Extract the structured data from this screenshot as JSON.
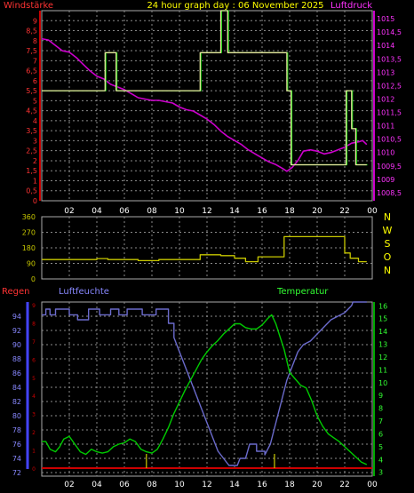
{
  "header": {
    "left": "Windstärke",
    "center": "24 hour graph day : 06 November 2025",
    "right": "Luftdruck"
  },
  "bottom_header": {
    "left": "Regen",
    "middle": "Luftfeuchte",
    "right": "Temperatur"
  },
  "colors": {
    "background": "#000000",
    "grid": "#8a8a8a",
    "wind": "#e8e8a0",
    "wind_gust": "#00cc00",
    "pressure": "#cc00cc",
    "direction": "#c8c800",
    "humidity": "#6b6bcc",
    "temperature": "#00cc00",
    "rain": "#cc0000",
    "rain_axis": "#4444ff",
    "left_labels": "#ff3333",
    "right_labels_pressure": "#ff33ff",
    "humidity_labels": "#8888ff",
    "temperature_labels": "#33ff33",
    "header_text": "#ffff00",
    "header_left": "#ff3333",
    "header_right": "#ff33ff"
  },
  "chart_data": [
    {
      "type": "line",
      "name": "wind-pressure",
      "x_ticks": [
        "02",
        "04",
        "06",
        "08",
        "10",
        "12",
        "14",
        "16",
        "18",
        "20",
        "22",
        "00"
      ],
      "xlim": [
        0,
        24
      ],
      "y_left_ticks": [
        "0",
        "0,5",
        "1",
        "1,5",
        "2",
        "2,5",
        "3",
        "3,5",
        "4",
        "4,5",
        "5",
        "5,5",
        "6",
        "6,5",
        "7",
        "7,5",
        "8",
        "8,5",
        "9"
      ],
      "ylim_left": [
        0,
        9.5
      ],
      "y_right_ticks": [
        "1008,5",
        "1009",
        "1009,5",
        "1010",
        "1010,5",
        "1011",
        "1011,5",
        "1012",
        "1012,5",
        "1013",
        "1013,5",
        "1014",
        "1014,5",
        "1015"
      ],
      "ylim_right": [
        1008.2,
        1015.3
      ],
      "series": [
        {
          "key": "wind",
          "points": [
            [
              0,
              5.5
            ],
            [
              4.6,
              5.5
            ],
            [
              4.6,
              7.4
            ],
            [
              5.4,
              7.4
            ],
            [
              5.4,
              5.5
            ],
            [
              11.5,
              5.5
            ],
            [
              11.5,
              7.4
            ],
            [
              13,
              7.4
            ],
            [
              13,
              9.5
            ],
            [
              13.5,
              9.5
            ],
            [
              13.5,
              7.4
            ],
            [
              17.8,
              7.4
            ],
            [
              17.8,
              5.5
            ],
            [
              18.1,
              5.5
            ],
            [
              18.1,
              1.8
            ],
            [
              22.1,
              1.8
            ],
            [
              22.1,
              5.5
            ],
            [
              22.5,
              5.5
            ],
            [
              22.5,
              3.6
            ],
            [
              22.8,
              3.6
            ],
            [
              22.8,
              1.8
            ],
            [
              23.6,
              1.8
            ]
          ]
        },
        {
          "key": "pressure",
          "points": [
            [
              0,
              1014.25
            ],
            [
              0.5,
              1014.2
            ],
            [
              1,
              1014.0
            ],
            [
              1.5,
              1013.8
            ],
            [
              2,
              1013.75
            ],
            [
              2.5,
              1013.55
            ],
            [
              3,
              1013.3
            ],
            [
              3.5,
              1013.05
            ],
            [
              4,
              1012.85
            ],
            [
              4.5,
              1012.75
            ],
            [
              5,
              1012.55
            ],
            [
              5.5,
              1012.45
            ],
            [
              6,
              1012.35
            ],
            [
              6.5,
              1012.2
            ],
            [
              7,
              1012.05
            ],
            [
              7.5,
              1012.0
            ],
            [
              8,
              1011.95
            ],
            [
              8.5,
              1011.95
            ],
            [
              9,
              1011.9
            ],
            [
              9.5,
              1011.85
            ],
            [
              10,
              1011.7
            ],
            [
              10.5,
              1011.6
            ],
            [
              11,
              1011.55
            ],
            [
              11.5,
              1011.4
            ],
            [
              12,
              1011.25
            ],
            [
              12.5,
              1011.05
            ],
            [
              13,
              1010.8
            ],
            [
              13.5,
              1010.6
            ],
            [
              14,
              1010.45
            ],
            [
              14.5,
              1010.3
            ],
            [
              15,
              1010.1
            ],
            [
              15.5,
              1009.95
            ],
            [
              16,
              1009.8
            ],
            [
              16.5,
              1009.65
            ],
            [
              17,
              1009.55
            ],
            [
              17.5,
              1009.4
            ],
            [
              17.8,
              1009.3
            ],
            [
              18.2,
              1009.45
            ],
            [
              18.6,
              1009.7
            ],
            [
              19,
              1010.05
            ],
            [
              19.5,
              1010.1
            ],
            [
              20,
              1010.05
            ],
            [
              20.5,
              1009.95
            ],
            [
              21,
              1010.0
            ],
            [
              21.5,
              1010.1
            ],
            [
              22,
              1010.2
            ],
            [
              22.5,
              1010.35
            ],
            [
              23,
              1010.4
            ],
            [
              23.3,
              1010.45
            ],
            [
              23.6,
              1010.3
            ]
          ]
        }
      ]
    },
    {
      "type": "line",
      "name": "wind-direction",
      "x_ticks": [
        "02",
        "04",
        "06",
        "08",
        "10",
        "12",
        "14",
        "16",
        "18",
        "20",
        "22",
        "00"
      ],
      "xlim": [
        0,
        24
      ],
      "y_ticks": [
        "0",
        "90",
        "180",
        "270",
        "360"
      ],
      "ylim": [
        0,
        360
      ],
      "compass": [
        "N",
        "W",
        "S",
        "O",
        "N"
      ],
      "series": [
        {
          "key": "direction",
          "points": [
            [
              0,
              112
            ],
            [
              4,
              112
            ],
            [
              4,
              118
            ],
            [
              4.8,
              118
            ],
            [
              4.8,
              112
            ],
            [
              7,
              112
            ],
            [
              7,
              106
            ],
            [
              8.5,
              106
            ],
            [
              8.5,
              112
            ],
            [
              11.5,
              112
            ],
            [
              11.5,
              140
            ],
            [
              13,
              140
            ],
            [
              13,
              135
            ],
            [
              14,
              135
            ],
            [
              14,
              120
            ],
            [
              14.8,
              120
            ],
            [
              14.8,
              100
            ],
            [
              15.7,
              100
            ],
            [
              15.7,
              128
            ],
            [
              17.6,
              128
            ],
            [
              17.6,
              245
            ],
            [
              22,
              245
            ],
            [
              22,
              150
            ],
            [
              22.4,
              150
            ],
            [
              22.4,
              120
            ],
            [
              23,
              120
            ],
            [
              23,
              100
            ],
            [
              23.6,
              100
            ]
          ]
        }
      ]
    },
    {
      "type": "line",
      "name": "humidity-temperature",
      "x_ticks": [
        "02",
        "04",
        "06",
        "08",
        "10",
        "12",
        "14",
        "16",
        "18",
        "20",
        "22",
        "00"
      ],
      "xlim": [
        0,
        24
      ],
      "y_left_ticks": [
        "72",
        "74",
        "76",
        "78",
        "80",
        "82",
        "84",
        "86",
        "88",
        "90",
        "92",
        "94"
      ],
      "ylim_left": [
        71.5,
        96
      ],
      "y_right_ticks": [
        "3",
        "4",
        "5",
        "6",
        "7",
        "8",
        "9",
        "10",
        "11",
        "12",
        "13",
        "14",
        "15",
        "16"
      ],
      "ylim_right": [
        2.7,
        16.3
      ],
      "rain_axis_ticks": [
        "0",
        "1",
        "2",
        "3",
        "4",
        "5",
        "6",
        "7",
        "8",
        "9"
      ],
      "series": [
        {
          "key": "humidity",
          "points": [
            [
              0,
              94.2
            ],
            [
              0.3,
              94.2
            ],
            [
              0.3,
              95
            ],
            [
              0.6,
              95
            ],
            [
              0.6,
              94.2
            ],
            [
              1,
              94.2
            ],
            [
              1,
              95
            ],
            [
              2,
              95
            ],
            [
              2,
              94.2
            ],
            [
              2.6,
              94.2
            ],
            [
              2.6,
              93.5
            ],
            [
              3.4,
              93.5
            ],
            [
              3.4,
              95
            ],
            [
              4.2,
              95
            ],
            [
              4.2,
              94.2
            ],
            [
              5,
              94.2
            ],
            [
              5,
              95
            ],
            [
              5.6,
              95
            ],
            [
              5.6,
              94.2
            ],
            [
              6.2,
              94.2
            ],
            [
              6.2,
              95
            ],
            [
              7.3,
              95
            ],
            [
              7.3,
              94.2
            ],
            [
              8.3,
              94.2
            ],
            [
              8.3,
              95
            ],
            [
              9.2,
              95
            ],
            [
              9.2,
              93
            ],
            [
              9.6,
              93
            ],
            [
              9.6,
              91
            ],
            [
              10,
              89
            ],
            [
              10.4,
              87
            ],
            [
              10.8,
              85
            ],
            [
              11.2,
              83
            ],
            [
              11.6,
              81
            ],
            [
              12,
              79
            ],
            [
              12.4,
              77
            ],
            [
              12.8,
              75
            ],
            [
              13.2,
              74
            ],
            [
              13.6,
              73
            ],
            [
              14.2,
              73
            ],
            [
              14.4,
              74
            ],
            [
              14.8,
              74
            ],
            [
              15.1,
              76
            ],
            [
              15.6,
              76
            ],
            [
              15.6,
              75
            ],
            [
              16.2,
              75
            ],
            [
              16.2,
              74.5
            ],
            [
              16.6,
              76
            ],
            [
              17,
              79
            ],
            [
              17.4,
              82
            ],
            [
              17.8,
              85
            ],
            [
              18.2,
              87
            ],
            [
              18.6,
              89
            ],
            [
              19,
              90
            ],
            [
              19.5,
              90.5
            ],
            [
              20,
              91.5
            ],
            [
              20.5,
              92.5
            ],
            [
              21,
              93.5
            ],
            [
              21.5,
              94
            ],
            [
              22,
              94.5
            ],
            [
              22.5,
              95.5
            ],
            [
              22.6,
              96
            ],
            [
              23.6,
              96
            ]
          ]
        },
        {
          "key": "temperature",
          "points": [
            [
              0,
              5.4
            ],
            [
              0.3,
              5.4
            ],
            [
              0.6,
              4.8
            ],
            [
              1,
              4.6
            ],
            [
              1.3,
              5.0
            ],
            [
              1.6,
              5.6
            ],
            [
              2,
              5.8
            ],
            [
              2.4,
              5.2
            ],
            [
              2.8,
              4.6
            ],
            [
              3.2,
              4.4
            ],
            [
              3.6,
              4.8
            ],
            [
              4,
              4.6
            ],
            [
              4.4,
              4.5
            ],
            [
              4.8,
              4.6
            ],
            [
              5.2,
              5.0
            ],
            [
              5.6,
              5.2
            ],
            [
              6,
              5.3
            ],
            [
              6.4,
              5.6
            ],
            [
              6.8,
              5.4
            ],
            [
              7.2,
              4.8
            ],
            [
              7.6,
              4.6
            ],
            [
              8,
              4.5
            ],
            [
              8.4,
              4.8
            ],
            [
              8.8,
              5.6
            ],
            [
              9.2,
              6.5
            ],
            [
              9.6,
              7.6
            ],
            [
              10,
              8.5
            ],
            [
              10.4,
              9.4
            ],
            [
              10.8,
              10.2
            ],
            [
              11.2,
              11
            ],
            [
              11.6,
              11.8
            ],
            [
              12,
              12.4
            ],
            [
              12.4,
              12.9
            ],
            [
              12.8,
              13.3
            ],
            [
              13.2,
              13.8
            ],
            [
              13.6,
              14.2
            ],
            [
              14,
              14.6
            ],
            [
              14.4,
              14.6
            ],
            [
              14.8,
              14.3
            ],
            [
              15.2,
              14.2
            ],
            [
              15.6,
              14.2
            ],
            [
              16,
              14.5
            ],
            [
              16.4,
              15.0
            ],
            [
              16.7,
              15.3
            ],
            [
              17,
              14.6
            ],
            [
              17.3,
              13.6
            ],
            [
              17.6,
              12.6
            ],
            [
              18,
              10.8
            ],
            [
              18.4,
              10.3
            ],
            [
              18.8,
              9.8
            ],
            [
              19.2,
              9.6
            ],
            [
              19.6,
              8.6
            ],
            [
              20,
              7.4
            ],
            [
              20.4,
              6.6
            ],
            [
              20.8,
              6.0
            ],
            [
              21.2,
              5.7
            ],
            [
              21.6,
              5.4
            ],
            [
              22,
              5.0
            ],
            [
              22.4,
              4.6
            ],
            [
              22.8,
              4.2
            ],
            [
              23.2,
              3.8
            ],
            [
              23.6,
              3.6
            ]
          ]
        },
        {
          "key": "rain_markers",
          "x": [
            7.6,
            16.9
          ]
        }
      ]
    }
  ]
}
